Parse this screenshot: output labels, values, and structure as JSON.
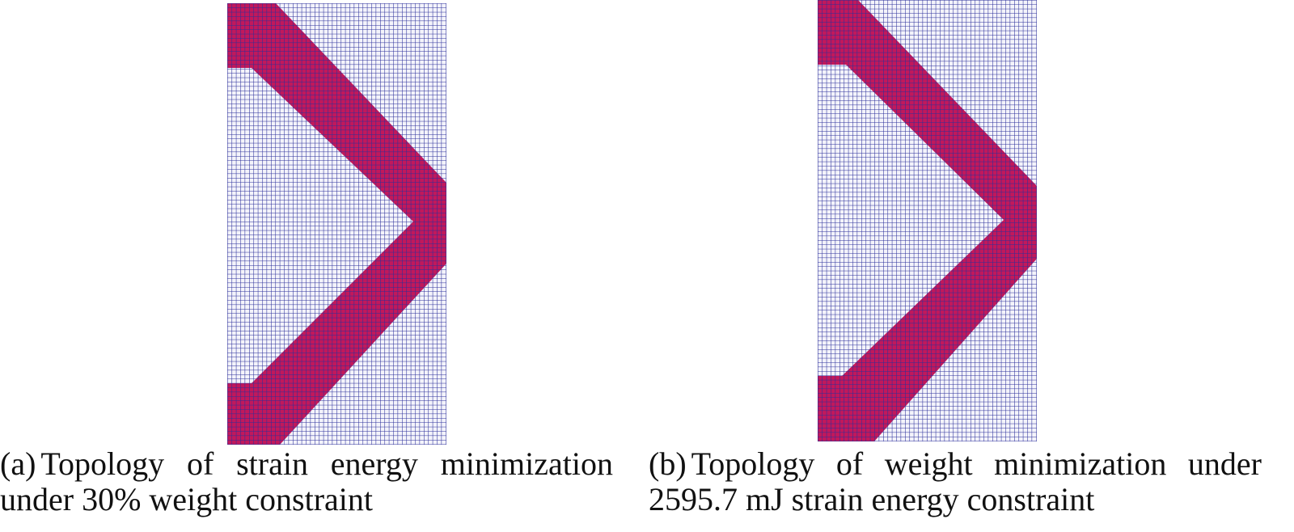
{
  "figures": [
    {
      "label": "(a)",
      "caption": "Topology of strain energy minimization under 30% weight constraint"
    },
    {
      "label": "(b)",
      "caption": "Topology of weight minimization under 2595.7 mJ strain energy constraint"
    }
  ]
}
